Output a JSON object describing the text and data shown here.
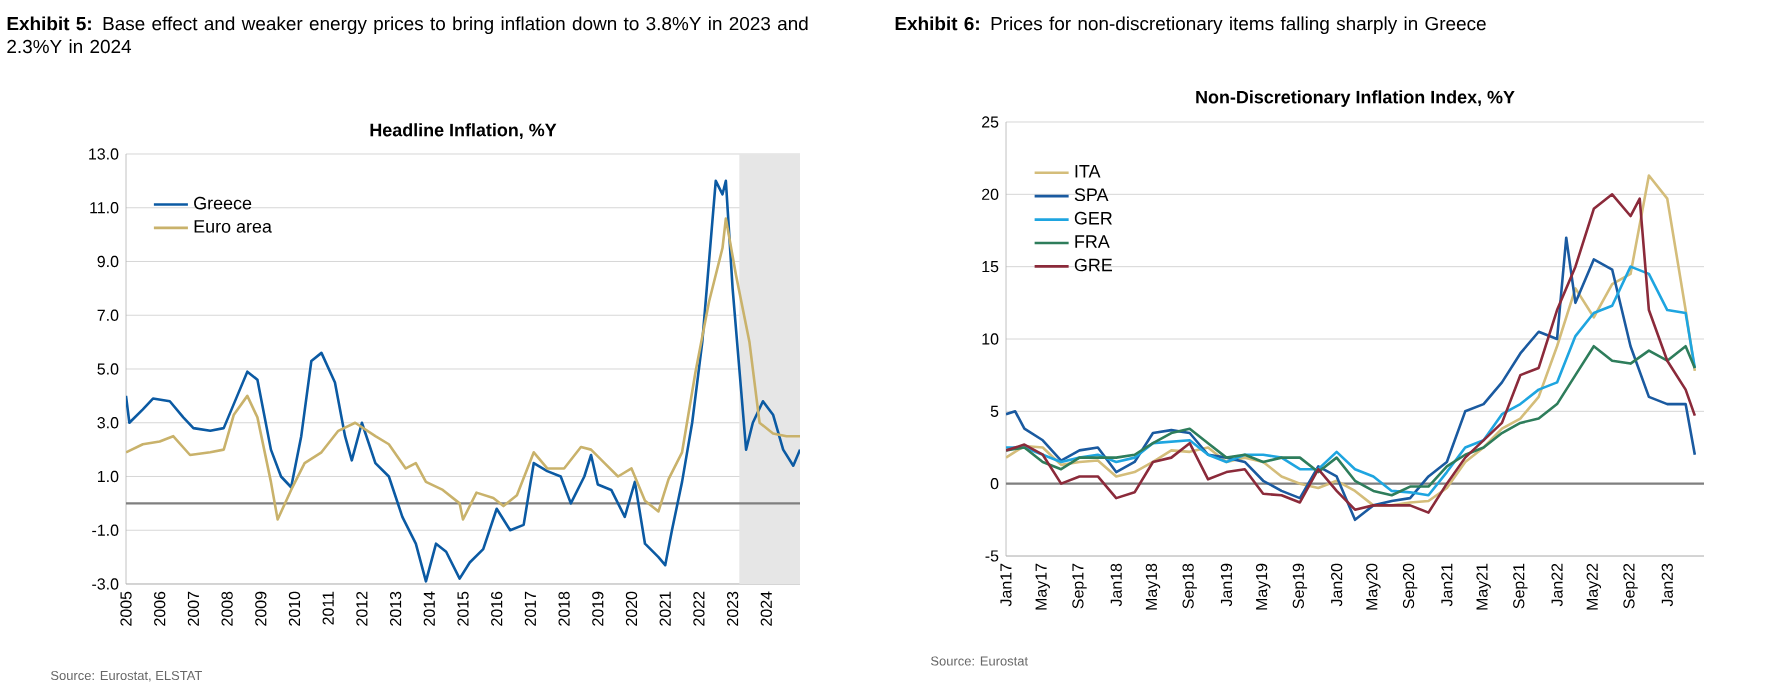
{
  "chart_data": [
    {
      "type": "line",
      "title": "**Exhibit 5:** Base effect and weaker energy prices to bring inflation down to 3.8%Y in 2023 and 2.3%Y in 2024",
      "subtitle": "Headline Inflation, %Y",
      "annotations": [
        "Source: Eurostat, ELSTAT"
      ],
      "xlim": [
        2005,
        2025
      ],
      "xticks": [
        2005,
        2006,
        2007,
        2008,
        2009,
        2010,
        2011,
        2012,
        2013,
        2014,
        2015,
        2016,
        2017,
        2018,
        2019,
        2020,
        2021,
        2022,
        2023,
        2024
      ],
      "ylim": [
        -3,
        13
      ],
      "yticks": [
        {
          "value": -3,
          "label": "-3.0"
        },
        {
          "value": -1,
          "label": "-1.0"
        },
        {
          "value": 1,
          "label": "1.0"
        },
        {
          "value": 3,
          "label": "3.0"
        },
        {
          "value": 5,
          "label": "5.0"
        },
        {
          "value": 7,
          "label": "7.0"
        },
        {
          "value": 9,
          "label": "9.0"
        },
        {
          "value": 11,
          "label": "11.0"
        },
        {
          "value": 13,
          "label": "13.0"
        }
      ],
      "grid": "y",
      "legend": "top left",
      "bands": [
        {
          "axis": "x",
          "from": 2023.2,
          "to": 2025,
          "color": "#e6e6e6"
        }
      ],
      "ref_lines": [
        {
          "axis": "y",
          "value": 0,
          "color": "#7f7f7f"
        }
      ],
      "series": [
        {
          "name": "Greece",
          "color": "#0b5aa3",
          "x": [
            2005.0,
            2005.1,
            2005.5,
            2005.8,
            2006.3,
            2006.7,
            2007.0,
            2007.5,
            2007.9,
            2008.3,
            2008.6,
            2008.9,
            2009.3,
            2009.6,
            2009.9,
            2010.2,
            2010.5,
            2010.8,
            2011.2,
            2011.5,
            2011.7,
            2012.0,
            2012.4,
            2012.8,
            2013.2,
            2013.6,
            2013.9,
            2014.2,
            2014.5,
            2014.9,
            2015.2,
            2015.6,
            2016.0,
            2016.4,
            2016.8,
            2017.1,
            2017.5,
            2017.9,
            2018.2,
            2018.6,
            2018.8,
            2019.0,
            2019.4,
            2019.8,
            2020.1,
            2020.4,
            2020.8,
            2021.0,
            2021.2,
            2021.5,
            2021.8,
            2022.1,
            2022.4,
            2022.5,
            2022.7,
            2022.8,
            2023.0,
            2023.2,
            2023.4,
            2023.6,
            2023.9,
            2024.2,
            2024.5,
            2024.8,
            2025.0
          ],
          "values": [
            4.0,
            3.0,
            3.5,
            3.9,
            3.8,
            3.2,
            2.8,
            2.7,
            2.8,
            4.0,
            4.9,
            4.6,
            2.0,
            1.0,
            0.6,
            2.5,
            5.3,
            5.6,
            4.5,
            2.5,
            1.6,
            3.0,
            1.5,
            1.0,
            -0.5,
            -1.5,
            -2.9,
            -1.5,
            -1.8,
            -2.8,
            -2.2,
            -1.7,
            -0.2,
            -1.0,
            -0.8,
            1.5,
            1.2,
            1.0,
            0.0,
            1.0,
            1.8,
            0.7,
            0.5,
            -0.5,
            0.8,
            -1.5,
            -2.0,
            -2.3,
            -1.0,
            0.8,
            3.0,
            6.0,
            10.5,
            12.0,
            11.5,
            12.0,
            8.0,
            5.0,
            2.0,
            3.0,
            3.8,
            3.3,
            2.0,
            1.4,
            2.0
          ]
        },
        {
          "name": "Euro area",
          "color": "#c9b26b",
          "x": [
            2005.0,
            2005.5,
            2006.0,
            2006.4,
            2006.9,
            2007.5,
            2007.9,
            2008.2,
            2008.6,
            2008.9,
            2009.3,
            2009.5,
            2009.9,
            2010.3,
            2010.8,
            2011.3,
            2011.8,
            2012.4,
            2012.8,
            2013.3,
            2013.6,
            2013.9,
            2014.4,
            2014.9,
            2015.0,
            2015.4,
            2015.9,
            2016.2,
            2016.6,
            2017.1,
            2017.5,
            2018.0,
            2018.5,
            2018.8,
            2019.2,
            2019.6,
            2020.0,
            2020.4,
            2020.8,
            2021.1,
            2021.5,
            2021.9,
            2022.3,
            2022.7,
            2022.8,
            2023.1,
            2023.5,
            2023.8,
            2024.2,
            2024.6,
            2025.0
          ],
          "values": [
            1.9,
            2.2,
            2.3,
            2.5,
            1.8,
            1.9,
            2.0,
            3.3,
            4.0,
            3.2,
            0.8,
            -0.6,
            0.5,
            1.5,
            1.9,
            2.7,
            3.0,
            2.5,
            2.2,
            1.3,
            1.5,
            0.8,
            0.5,
            0.0,
            -0.6,
            0.4,
            0.2,
            -0.1,
            0.3,
            1.9,
            1.3,
            1.3,
            2.1,
            2.0,
            1.5,
            1.0,
            1.3,
            0.1,
            -0.3,
            0.9,
            1.9,
            4.9,
            7.5,
            9.5,
            10.6,
            8.5,
            6.0,
            3.0,
            2.6,
            2.5,
            2.5
          ]
        }
      ]
    },
    {
      "type": "line",
      "title": "**Exhibit 6:** Prices for non-discretionary items falling sharply in Greece",
      "subtitle": "Non-Discretionary Inflation Index, %Y",
      "annotations": [
        "Source: Eurostat"
      ],
      "xlim": [
        "2017-01",
        "2023-05"
      ],
      "xticks": [
        {
          "value": "2017-01",
          "label": "Jan17"
        },
        {
          "value": "2017-05",
          "label": "May17"
        },
        {
          "value": "2017-09",
          "label": "Sep17"
        },
        {
          "value": "2018-01",
          "label": "Jan18"
        },
        {
          "value": "2018-05",
          "label": "May18"
        },
        {
          "value": "2018-09",
          "label": "Sep18"
        },
        {
          "value": "2019-01",
          "label": "Jan19"
        },
        {
          "value": "2019-05",
          "label": "May19"
        },
        {
          "value": "2019-09",
          "label": "Sep19"
        },
        {
          "value": "2020-01",
          "label": "Jan20"
        },
        {
          "value": "2020-05",
          "label": "May20"
        },
        {
          "value": "2020-09",
          "label": "Sep20"
        },
        {
          "value": "2021-01",
          "label": "Jan21"
        },
        {
          "value": "2021-05",
          "label": "May21"
        },
        {
          "value": "2021-09",
          "label": "Sep21"
        },
        {
          "value": "2022-01",
          "label": "Jan22"
        },
        {
          "value": "2022-05",
          "label": "May22"
        },
        {
          "value": "2022-09",
          "label": "Sep22"
        },
        {
          "value": "2023-01",
          "label": "Jan23"
        }
      ],
      "ylim": [
        -5,
        25
      ],
      "yticks": [
        -5,
        0,
        5,
        10,
        15,
        20,
        25
      ],
      "grid": "y",
      "legend": "top left",
      "ref_lines": [
        {
          "axis": "y",
          "value": 0,
          "color": "#7f7f7f"
        }
      ],
      "series": [
        {
          "name": "ITA",
          "color": "#d4bd7a",
          "x": [
            "2017-01",
            "2017-03",
            "2017-05",
            "2017-07",
            "2017-09",
            "2017-11",
            "2018-01",
            "2018-03",
            "2018-05",
            "2018-07",
            "2018-09",
            "2018-11",
            "2019-01",
            "2019-03",
            "2019-05",
            "2019-07",
            "2019-09",
            "2019-11",
            "2020-01",
            "2020-03",
            "2020-05",
            "2020-07",
            "2020-09",
            "2020-11",
            "2021-01",
            "2021-03",
            "2021-05",
            "2021-07",
            "2021-09",
            "2021-11",
            "2022-01",
            "2022-03",
            "2022-05",
            "2022-07",
            "2022-09",
            "2022-11",
            "2023-01",
            "2023-03",
            "2023-04"
          ],
          "values": [
            1.8,
            2.6,
            2.5,
            1.3,
            1.5,
            1.6,
            0.5,
            0.8,
            1.5,
            2.3,
            2.2,
            2.5,
            1.5,
            1.8,
            1.5,
            0.5,
            0.0,
            -0.3,
            0.2,
            -0.5,
            -1.5,
            -1.5,
            -1.3,
            -1.2,
            -0.3,
            1.5,
            2.5,
            3.8,
            4.5,
            6.0,
            9.5,
            13.5,
            11.5,
            13.8,
            14.5,
            21.3,
            19.7,
            12.0,
            7.8
          ]
        },
        {
          "name": "SPA",
          "color": "#1a5aa0",
          "x": [
            "2017-01",
            "2017-02",
            "2017-03",
            "2017-05",
            "2017-07",
            "2017-09",
            "2017-11",
            "2018-01",
            "2018-03",
            "2018-05",
            "2018-07",
            "2018-09",
            "2018-11",
            "2019-01",
            "2019-03",
            "2019-05",
            "2019-07",
            "2019-09",
            "2019-11",
            "2020-01",
            "2020-03",
            "2020-05",
            "2020-07",
            "2020-09",
            "2020-11",
            "2021-01",
            "2021-03",
            "2021-05",
            "2021-07",
            "2021-09",
            "2021-11",
            "2022-01",
            "2022-02",
            "2022-03",
            "2022-05",
            "2022-07",
            "2022-09",
            "2022-11",
            "2023-01",
            "2023-03",
            "2023-04"
          ],
          "values": [
            4.8,
            5.0,
            3.8,
            3.0,
            1.6,
            2.3,
            2.5,
            0.8,
            1.5,
            3.5,
            3.7,
            3.5,
            2.0,
            1.8,
            1.5,
            0.2,
            -0.5,
            -1.0,
            1.2,
            0.5,
            -2.5,
            -1.5,
            -1.2,
            -1.0,
            0.5,
            1.5,
            5.0,
            5.5,
            7.0,
            9.0,
            10.5,
            10.0,
            17.0,
            12.5,
            15.5,
            14.8,
            9.5,
            6.0,
            5.5,
            5.5,
            2.0
          ]
        },
        {
          "name": "GER",
          "color": "#1ea5e0",
          "x": [
            "2017-01",
            "2017-03",
            "2017-05",
            "2017-07",
            "2017-09",
            "2017-11",
            "2018-01",
            "2018-03",
            "2018-05",
            "2018-07",
            "2018-09",
            "2018-11",
            "2019-01",
            "2019-03",
            "2019-05",
            "2019-07",
            "2019-09",
            "2019-11",
            "2020-01",
            "2020-03",
            "2020-05",
            "2020-07",
            "2020-09",
            "2020-11",
            "2021-01",
            "2021-03",
            "2021-05",
            "2021-07",
            "2021-09",
            "2021-11",
            "2022-01",
            "2022-03",
            "2022-05",
            "2022-07",
            "2022-09",
            "2022-11",
            "2023-01",
            "2023-03",
            "2023-04"
          ],
          "values": [
            2.5,
            2.5,
            2.0,
            1.5,
            1.8,
            2.0,
            1.5,
            1.8,
            2.8,
            2.9,
            3.0,
            2.0,
            1.5,
            2.0,
            2.0,
            1.8,
            1.0,
            1.0,
            2.2,
            1.0,
            0.5,
            -0.5,
            -0.6,
            -0.8,
            0.8,
            2.5,
            3.0,
            4.8,
            5.5,
            6.5,
            7.0,
            10.2,
            11.8,
            12.3,
            15.0,
            14.5,
            12.0,
            11.8,
            8.0
          ]
        },
        {
          "name": "FRA",
          "color": "#2e7d5b",
          "x": [
            "2017-01",
            "2017-03",
            "2017-05",
            "2017-07",
            "2017-09",
            "2017-11",
            "2018-01",
            "2018-03",
            "2018-05",
            "2018-07",
            "2018-09",
            "2018-11",
            "2019-01",
            "2019-03",
            "2019-05",
            "2019-07",
            "2019-09",
            "2019-11",
            "2020-01",
            "2020-03",
            "2020-05",
            "2020-07",
            "2020-09",
            "2020-11",
            "2021-01",
            "2021-03",
            "2021-05",
            "2021-07",
            "2021-09",
            "2021-11",
            "2022-01",
            "2022-03",
            "2022-05",
            "2022-07",
            "2022-09",
            "2022-11",
            "2023-01",
            "2023-03",
            "2023-04"
          ],
          "values": [
            2.3,
            2.5,
            1.5,
            1.0,
            1.8,
            1.8,
            1.8,
            2.0,
            2.8,
            3.5,
            3.8,
            2.8,
            1.8,
            2.0,
            1.5,
            1.8,
            1.8,
            0.8,
            1.8,
            0.2,
            -0.5,
            -0.8,
            -0.2,
            -0.2,
            1.2,
            2.0,
            2.5,
            3.5,
            4.2,
            4.5,
            5.5,
            7.5,
            9.5,
            8.5,
            8.3,
            9.2,
            8.5,
            9.5,
            8.0
          ]
        },
        {
          "name": "GRE",
          "color": "#8b2a3a",
          "x": [
            "2017-01",
            "2017-03",
            "2017-05",
            "2017-07",
            "2017-09",
            "2017-11",
            "2018-01",
            "2018-03",
            "2018-05",
            "2018-07",
            "2018-09",
            "2018-11",
            "2019-01",
            "2019-03",
            "2019-05",
            "2019-07",
            "2019-09",
            "2019-11",
            "2020-01",
            "2020-03",
            "2020-05",
            "2020-07",
            "2020-09",
            "2020-11",
            "2021-01",
            "2021-03",
            "2021-05",
            "2021-07",
            "2021-09",
            "2021-11",
            "2022-01",
            "2022-03",
            "2022-05",
            "2022-07",
            "2022-09",
            "2022-10",
            "2022-11",
            "2023-01",
            "2023-03",
            "2023-04"
          ],
          "values": [
            2.3,
            2.7,
            2.0,
            0.0,
            0.5,
            0.5,
            -1.0,
            -0.6,
            1.5,
            1.8,
            2.8,
            0.3,
            0.8,
            1.0,
            -0.7,
            -0.8,
            -1.3,
            1.0,
            -0.5,
            -1.8,
            -1.5,
            -1.5,
            -1.5,
            -2.0,
            0.0,
            1.8,
            3.0,
            4.2,
            7.5,
            8.0,
            12.0,
            15.0,
            19.0,
            20.0,
            18.5,
            19.7,
            12.0,
            8.5,
            6.5,
            4.7
          ]
        }
      ]
    }
  ]
}
